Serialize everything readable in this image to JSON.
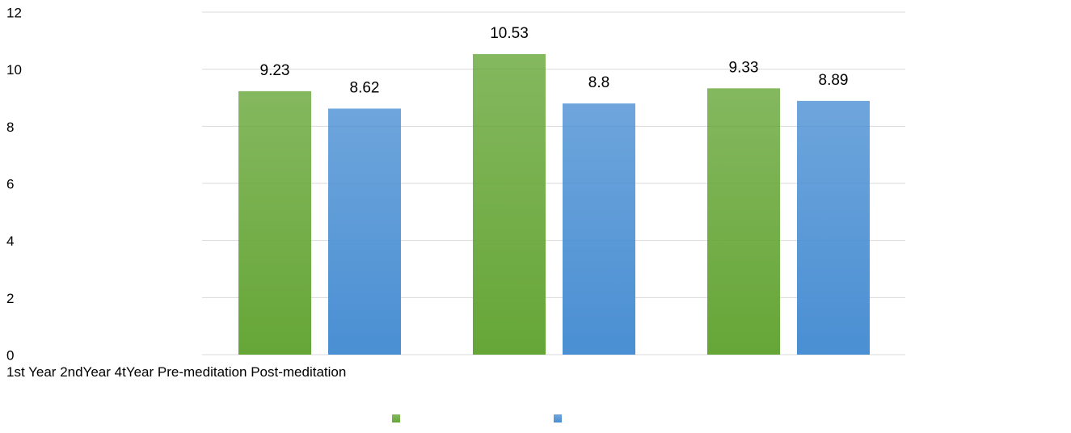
{
  "chart_data": {
    "type": "bar",
    "categories": [
      "1st Year",
      "2ndYear",
      "4tYear"
    ],
    "series": [
      {
        "name": "Pre-meditation",
        "color": "#66a637",
        "values": [
          9.23,
          10.53,
          9.33
        ]
      },
      {
        "name": "Post-meditation",
        "color": "#4a8fd3",
        "values": [
          8.62,
          8.8,
          8.89
        ]
      }
    ],
    "ylim": [
      0,
      12
    ],
    "yticks": [
      0,
      2,
      4,
      6,
      8,
      10,
      12
    ],
    "grid": true
  }
}
